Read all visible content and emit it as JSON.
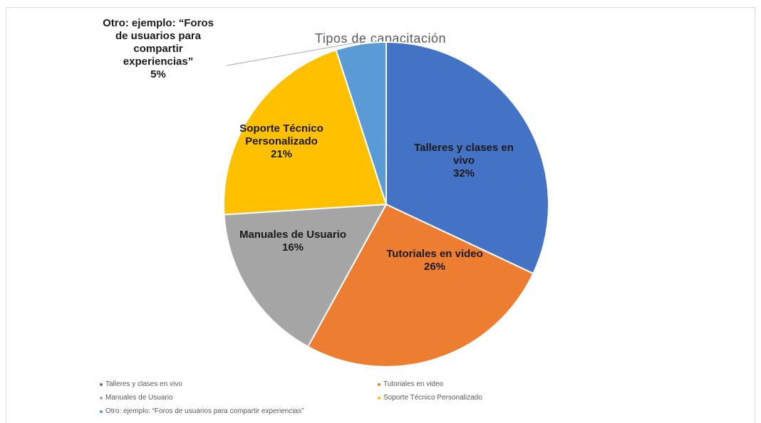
{
  "chart_data": {
    "type": "pie",
    "title": "Tipos de capacitación",
    "slices": [
      {
        "name": "Talleres y clases en vivo",
        "label_lines": [
          "Talleres y clases en",
          "vivo"
        ],
        "percent_label": "32%",
        "value": 32,
        "color": "#4472C4"
      },
      {
        "name": "Tutoriales en video",
        "label_lines": [
          "Tutoriales en video"
        ],
        "percent_label": "26%",
        "value": 26,
        "color": "#ED7D31"
      },
      {
        "name": "Manuales de Usuario",
        "label_lines": [
          "Manuales de Usuario"
        ],
        "percent_label": "16%",
        "value": 16,
        "color": "#A5A5A5"
      },
      {
        "name": "Soporte Técnico Personalizado",
        "label_lines": [
          "Soporte Técnico",
          "Personalizado"
        ],
        "percent_label": "21%",
        "value": 21,
        "color": "#FFC000"
      },
      {
        "name": "Otro: ejemplo: “Foros de usuarios para compartir experiencias”",
        "label_lines": [
          "Otro: ejemplo: “Foros",
          "de usuarios para",
          "compartir",
          "experiencias”"
        ],
        "percent_label": "5%",
        "value": 5,
        "color": "#5B9BD5"
      }
    ],
    "legend": {
      "placement": "bottom",
      "entries": [
        "Talleres y clases en vivo",
        "Tutoriales en video",
        "Manuales de Usuario",
        "Soporte Técnico Personalizado",
        "Otro: ejemplo: “Foros de usuarios para compartir experiencias”"
      ]
    }
  }
}
